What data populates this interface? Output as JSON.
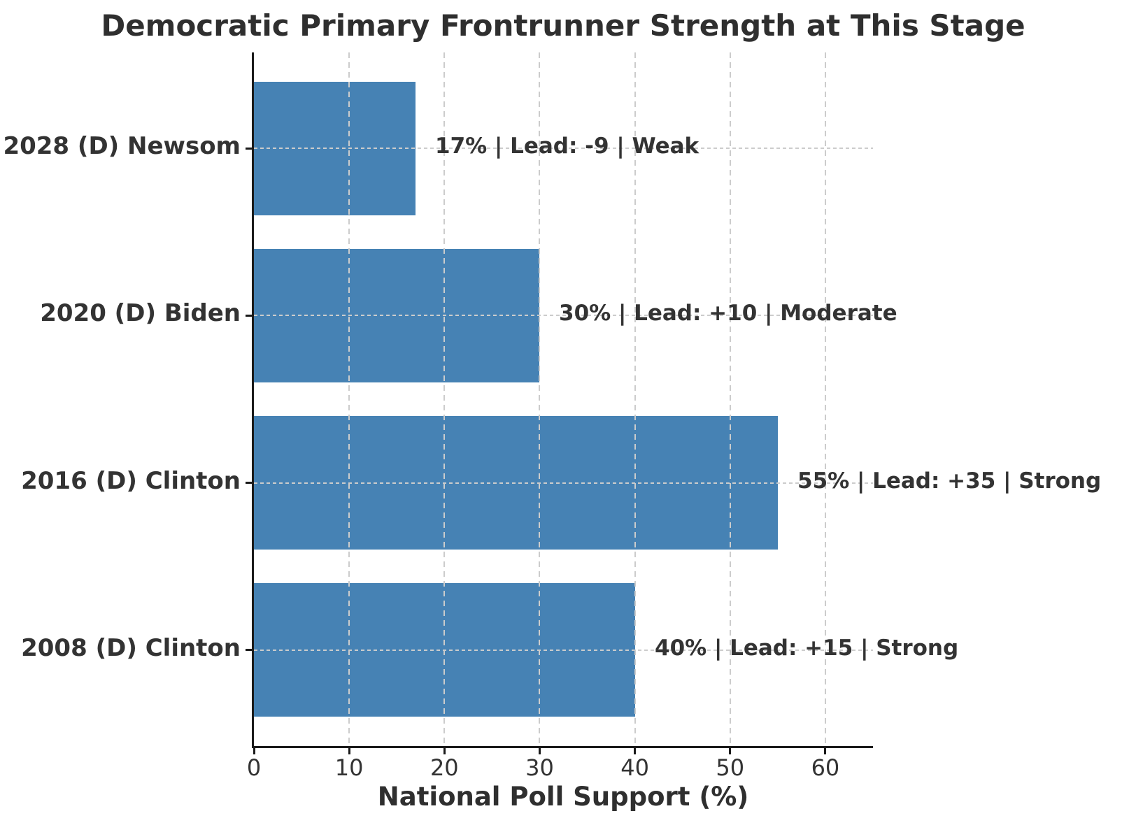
{
  "chart_data": {
    "type": "bar",
    "orientation": "horizontal",
    "title": "Democratic Primary Frontrunner Strength at This Stage",
    "xlabel": "National Poll Support (%)",
    "ylabel": "",
    "categories": [
      "2028 (D) Newsom",
      "2020 (D) Biden",
      "2016 (D) Clinton",
      "2008 (D) Clinton"
    ],
    "values": [
      17,
      30,
      55,
      40
    ],
    "annotations": [
      "17% | Lead: -9 | Weak",
      "30% | Lead: +10 | Moderate",
      "55% | Lead: +35 | Strong",
      "40% | Lead: +15 | Strong"
    ],
    "xlim": [
      0,
      65
    ],
    "xticks": [
      0,
      10,
      20,
      30,
      40,
      50,
      60
    ],
    "grid": true,
    "legend": false,
    "bar_color": "#4682b4",
    "grid_color": "#cccccc",
    "text_color": "#333333",
    "spine_color": "#1a1a1a"
  }
}
